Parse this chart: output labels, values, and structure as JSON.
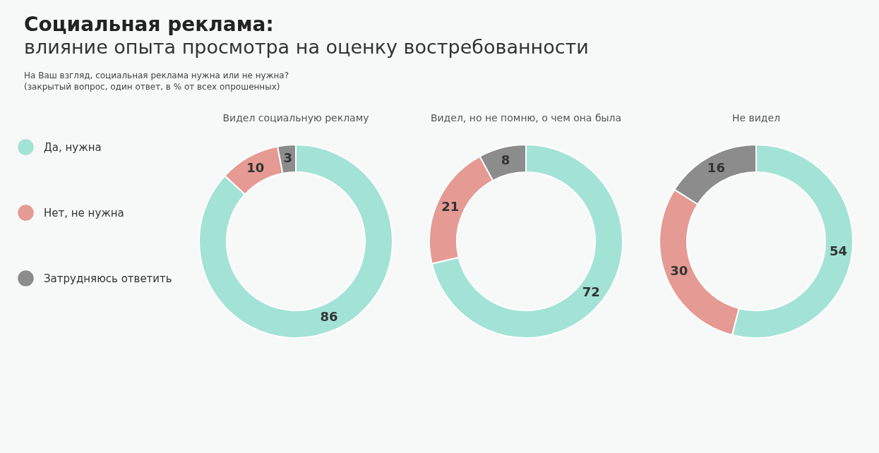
{
  "chart_data": [
    {
      "type": "donut",
      "title": "Видел социальную рекламу",
      "annotations": [
        "Социальная реклама:",
        "влияние опыта просмотра на оценку востребованности",
        "На Ваш взгляд, социальная реклама нужна или не нужна?",
        "(закрытый вопрос, один ответ, в % от всех опрошенных)"
      ],
      "categories": [
        "Да, нужна",
        "Нет, не нужна",
        "Затрудняюсь ответить"
      ],
      "values": [
        86,
        10,
        3
      ],
      "colors": [
        "#a3e3d6",
        "#e59a94",
        "#8c8c8c"
      ],
      "data_labels": true,
      "legend": "left"
    },
    {
      "type": "donut",
      "title": "Видел, но не помню, о чем она была",
      "categories": [
        null,
        null,
        null
      ],
      "values": [
        72,
        21,
        8
      ],
      "colors": [
        "#a3e3d6",
        "#e59a94",
        "#8c8c8c"
      ],
      "data_labels": true
    },
    {
      "type": "donut",
      "title": "Не видел",
      "categories": [
        null,
        null,
        null
      ],
      "values": [
        54,
        30,
        16
      ],
      "colors": [
        "#a3e3d6",
        "#e59a94",
        "#8c8c8c"
      ],
      "data_labels": true
    }
  ]
}
